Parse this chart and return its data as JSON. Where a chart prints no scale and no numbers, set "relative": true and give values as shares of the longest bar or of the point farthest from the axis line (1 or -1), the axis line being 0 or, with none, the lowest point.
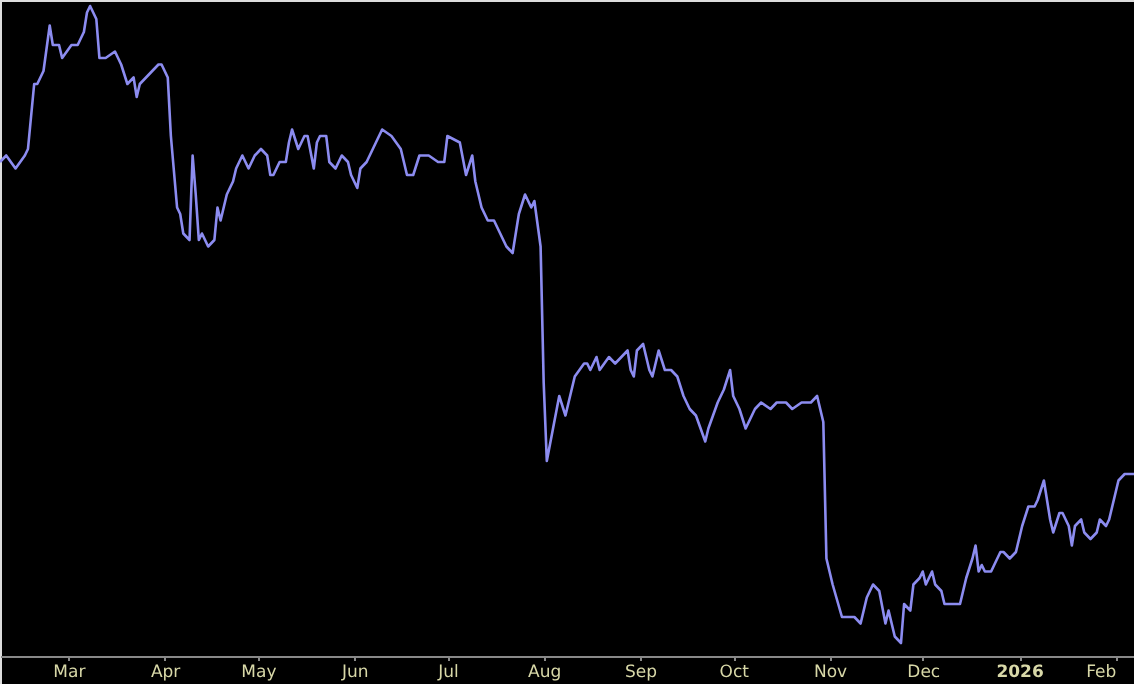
{
  "chart_data": {
    "type": "line",
    "relative": true,
    "grid": false,
    "marker": "none",
    "line_style": "solid",
    "tick_labels": "x",
    "xlim": [
      "2025-02-07",
      "2026-02-07"
    ],
    "xticks": [
      {
        "value": "2025-03-01",
        "label": "Mar"
      },
      {
        "value": "2025-04-01",
        "label": "Apr"
      },
      {
        "value": "2025-05-01",
        "label": "May"
      },
      {
        "value": "2025-06-01",
        "label": "Jun"
      },
      {
        "value": "2025-07-01",
        "label": "Jul"
      },
      {
        "value": "2025-08-01",
        "label": "Aug"
      },
      {
        "value": "2025-09-01",
        "label": "Sep"
      },
      {
        "value": "2025-10-01",
        "label": "Oct"
      },
      {
        "value": "2025-11-01",
        "label": "Nov"
      },
      {
        "value": "2025-12-01",
        "label": "Dec"
      },
      {
        "value": "2026-01-01",
        "label": "2026"
      },
      {
        "value": "2026-02-01",
        "label": "Feb"
      }
    ],
    "x": [
      "2025-02-07",
      "2025-02-09",
      "2025-02-12",
      "2025-02-15",
      "2025-02-16",
      "2025-02-18",
      "2025-02-19",
      "2025-02-21",
      "2025-02-23",
      "2025-02-24",
      "2025-02-26",
      "2025-02-27",
      "2025-03-02",
      "2025-03-04",
      "2025-03-06",
      "2025-03-07",
      "2025-03-08",
      "2025-03-10",
      "2025-03-11",
      "2025-03-13",
      "2025-03-16",
      "2025-03-18",
      "2025-03-20",
      "2025-03-22",
      "2025-03-23",
      "2025-03-24",
      "2025-03-26",
      "2025-03-28",
      "2025-03-30",
      "2025-03-31",
      "2025-04-02",
      "2025-04-03",
      "2025-04-05",
      "2025-04-06",
      "2025-04-07",
      "2025-04-09",
      "2025-04-10",
      "2025-04-11",
      "2025-04-12",
      "2025-04-13",
      "2025-04-15",
      "2025-04-17",
      "2025-04-18",
      "2025-04-19",
      "2025-04-21",
      "2025-04-23",
      "2025-04-24",
      "2025-04-26",
      "2025-04-28",
      "2025-04-30",
      "2025-05-02",
      "2025-05-04",
      "2025-05-05",
      "2025-05-06",
      "2025-05-08",
      "2025-05-10",
      "2025-05-11",
      "2025-05-12",
      "2025-05-14",
      "2025-05-16",
      "2025-05-17",
      "2025-05-19",
      "2025-05-20",
      "2025-05-21",
      "2025-05-23",
      "2025-05-24",
      "2025-05-26",
      "2025-05-28",
      "2025-05-30",
      "2025-05-31",
      "2025-06-02",
      "2025-06-03",
      "2025-06-05",
      "2025-06-08",
      "2025-06-10",
      "2025-06-13",
      "2025-06-16",
      "2025-06-18",
      "2025-06-20",
      "2025-06-22",
      "2025-06-25",
      "2025-06-28",
      "2025-06-30",
      "2025-07-01",
      "2025-07-05",
      "2025-07-07",
      "2025-07-09",
      "2025-07-10",
      "2025-07-12",
      "2025-07-14",
      "2025-07-16",
      "2025-07-18",
      "2025-07-20",
      "2025-07-22",
      "2025-07-24",
      "2025-07-26",
      "2025-07-28",
      "2025-07-29",
      "2025-07-31",
      "2025-08-01",
      "2025-08-02",
      "2025-08-04",
      "2025-08-06",
      "2025-08-08",
      "2025-08-10",
      "2025-08-11",
      "2025-08-14",
      "2025-08-15",
      "2025-08-16",
      "2025-08-18",
      "2025-08-19",
      "2025-08-22",
      "2025-08-24",
      "2025-08-26",
      "2025-08-28",
      "2025-08-29",
      "2025-08-30",
      "2025-08-31",
      "2025-09-02",
      "2025-09-04",
      "2025-09-05",
      "2025-09-07",
      "2025-09-09",
      "2025-09-11",
      "2025-09-13",
      "2025-09-15",
      "2025-09-17",
      "2025-09-19",
      "2025-09-22",
      "2025-09-23",
      "2025-09-26",
      "2025-09-28",
      "2025-09-30",
      "2025-10-01",
      "2025-10-03",
      "2025-10-05",
      "2025-10-08",
      "2025-10-10",
      "2025-10-13",
      "2025-10-15",
      "2025-10-18",
      "2025-10-20",
      "2025-10-23",
      "2025-10-26",
      "2025-10-28",
      "2025-10-30",
      "2025-10-31",
      "2025-11-02",
      "2025-11-05",
      "2025-11-09",
      "2025-11-11",
      "2025-11-13",
      "2025-11-15",
      "2025-11-17",
      "2025-11-19",
      "2025-11-20",
      "2025-11-22",
      "2025-11-24",
      "2025-11-25",
      "2025-11-27",
      "2025-11-28",
      "2025-11-30",
      "2025-12-01",
      "2025-12-02",
      "2025-12-04",
      "2025-12-05",
      "2025-12-07",
      "2025-12-08",
      "2025-12-10",
      "2025-12-13",
      "2025-12-15",
      "2025-12-17",
      "2025-12-18",
      "2025-12-19",
      "2025-12-20",
      "2025-12-21",
      "2025-12-23",
      "2025-12-24",
      "2025-12-26",
      "2025-12-27",
      "2025-12-29",
      "2025-12-31",
      "2026-01-02",
      "2026-01-04",
      "2026-01-06",
      "2026-01-07",
      "2026-01-09",
      "2026-01-11",
      "2026-01-12",
      "2026-01-14",
      "2026-01-15",
      "2026-01-17",
      "2026-01-18",
      "2026-01-19",
      "2026-01-21",
      "2026-01-22",
      "2026-01-24",
      "2026-01-26",
      "2026-01-27",
      "2026-01-29",
      "2026-01-30",
      "2026-02-01",
      "2026-02-02",
      "2026-02-04",
      "2026-02-07"
    ],
    "series": [
      {
        "color": "#8c8cf0",
        "values": [
          0.76,
          0.77,
          0.75,
          0.77,
          0.78,
          0.88,
          0.88,
          0.9,
          0.97,
          0.94,
          0.94,
          0.92,
          0.94,
          0.94,
          0.96,
          0.99,
          1.0,
          0.98,
          0.92,
          0.92,
          0.93,
          0.91,
          0.88,
          0.89,
          0.86,
          0.88,
          0.89,
          0.9,
          0.91,
          0.91,
          0.89,
          0.8,
          0.69,
          0.68,
          0.65,
          0.64,
          0.77,
          0.71,
          0.64,
          0.65,
          0.63,
          0.64,
          0.69,
          0.67,
          0.71,
          0.73,
          0.75,
          0.77,
          0.75,
          0.77,
          0.78,
          0.77,
          0.74,
          0.74,
          0.76,
          0.76,
          0.79,
          0.81,
          0.78,
          0.8,
          0.8,
          0.75,
          0.79,
          0.8,
          0.8,
          0.76,
          0.75,
          0.77,
          0.76,
          0.74,
          0.72,
          0.75,
          0.76,
          0.79,
          0.81,
          0.8,
          0.78,
          0.74,
          0.74,
          0.77,
          0.77,
          0.76,
          0.76,
          0.8,
          0.79,
          0.74,
          0.77,
          0.73,
          0.69,
          0.67,
          0.67,
          0.65,
          0.63,
          0.62,
          0.68,
          0.71,
          0.69,
          0.7,
          0.63,
          0.42,
          0.3,
          0.35,
          0.4,
          0.37,
          0.41,
          0.43,
          0.45,
          0.45,
          0.44,
          0.46,
          0.44,
          0.46,
          0.45,
          0.46,
          0.47,
          0.44,
          0.43,
          0.47,
          0.48,
          0.44,
          0.43,
          0.47,
          0.44,
          0.44,
          0.43,
          0.4,
          0.38,
          0.37,
          0.33,
          0.35,
          0.39,
          0.41,
          0.44,
          0.4,
          0.38,
          0.35,
          0.38,
          0.39,
          0.38,
          0.39,
          0.39,
          0.38,
          0.39,
          0.39,
          0.4,
          0.36,
          0.15,
          0.11,
          0.06,
          0.06,
          0.05,
          0.09,
          0.11,
          0.1,
          0.05,
          0.07,
          0.03,
          0.02,
          0.08,
          0.07,
          0.11,
          0.12,
          0.13,
          0.11,
          0.13,
          0.11,
          0.1,
          0.08,
          0.08,
          0.08,
          0.12,
          0.15,
          0.17,
          0.13,
          0.14,
          0.13,
          0.13,
          0.14,
          0.16,
          0.16,
          0.15,
          0.16,
          0.2,
          0.23,
          0.23,
          0.24,
          0.27,
          0.21,
          0.19,
          0.22,
          0.22,
          0.2,
          0.17,
          0.2,
          0.21,
          0.19,
          0.18,
          0.19,
          0.21,
          0.2,
          0.21,
          0.25,
          0.27,
          0.28,
          0.28
        ]
      }
    ]
  }
}
